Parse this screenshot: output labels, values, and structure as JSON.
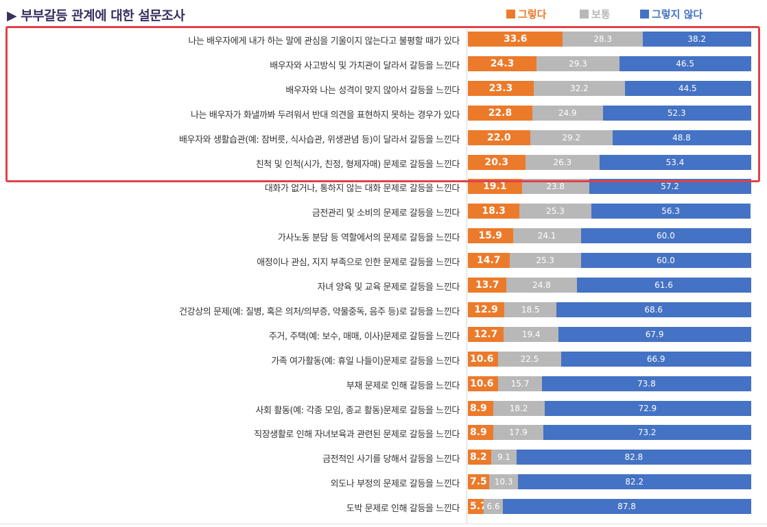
{
  "title": "부부갈등 관계에 대한 설문조사",
  "title_marker": "▶",
  "legend": [
    {
      "label": "그렇다",
      "color": "#ec7a2b"
    },
    {
      "label": "보통",
      "color": "#b8b8b8"
    },
    {
      "label": "그렇지 않다",
      "color": "#4472c4"
    }
  ],
  "highlighted_rows": 6,
  "chart_data": {
    "type": "bar",
    "orientation": "horizontal",
    "stacked": true,
    "percent_total": 100,
    "title": "부부갈등 관계에 대한 설문조사",
    "categories": [
      "나는 배우자에게 내가 하는 말에 관심을 기울이지 않는다고 불평할 때가 있다",
      "배우자와 사고방식 및 가치관이 달라서 갈등을 느낀다",
      "배우자와 나는 성격이 맞지 않아서 갈등을 느낀다",
      "나는 배우자가 화낼까봐 두려워서 반대 의견을 표현하지 못하는 경우가 있다",
      "배우자와 생활습관(예: 잠버릇, 식사습관, 위생관념 등)이 달라서 갈등을 느낀다",
      "친척 및 인척(시가, 친정, 형제자매) 문제로 갈등을 느낀다",
      "대화가 없거나, 통하지 않는 대화 문제로 갈등을 느낀다",
      "금전관리 및 소비의 문제로 갈등을 느낀다",
      "가사노동 분담 등 역할에서의 문제로 갈등을 느낀다",
      "애정이나 관심, 지지 부족으로 인한 문제로 갈등을 느낀다",
      "자녀 양육 및 교육 문제로 갈등을 느낀다",
      "건강상의 문제(예: 질병, 혹은 의처/의부증, 약물중독, 음주 등)로 갈등을 느낀다",
      "주거, 주택(예: 보수, 매매, 이사)문제로 갈등을 느낀다",
      "가족 여가활동(예: 휴일 나들이)문제로 갈등을 느낀다",
      "부채 문제로 인해 갈등을 느낀다",
      "사회 활동(예: 각종 모임, 종교 활동)문제로 갈등을 느낀다",
      "직장생활로 인해 자녀보육과 관련된 문제로 갈등을 느낀다",
      "금전적인 사기를 당해서 갈등을 느낀다",
      "외도나 부정의 문제로 갈등을 느낀다",
      "도박 문제로 인해 갈등을 느낀다"
    ],
    "series": [
      {
        "name": "그렇다",
        "color": "#ec7a2b",
        "values": [
          33.6,
          24.3,
          23.3,
          22.8,
          22.0,
          20.3,
          19.1,
          18.3,
          15.9,
          14.7,
          13.7,
          12.9,
          12.7,
          10.6,
          10.6,
          8.9,
          8.9,
          8.2,
          7.5,
          5.7
        ],
        "labels": [
          "33.6",
          "24.3",
          "23.3",
          "22.8",
          "22.0",
          "20.3",
          "19.1",
          "18.3",
          "15.9",
          "14.7",
          "13.7",
          "12.9",
          "12.7",
          "10.6",
          "10.6",
          "8.9",
          "8.9",
          "8.2",
          "7.5",
          "5.7"
        ]
      },
      {
        "name": "보통",
        "color": "#b8b8b8",
        "values": [
          28.3,
          29.3,
          32.2,
          24.9,
          29.2,
          26.3,
          23.8,
          25.3,
          24.1,
          25.3,
          24.8,
          18.5,
          19.4,
          22.5,
          15.7,
          18.2,
          17.9,
          9.1,
          10.3,
          6.6
        ],
        "labels": [
          "28.3",
          "29.3",
          "32.2",
          "24.9",
          "29.2",
          "26.3",
          "23.8",
          "25.3",
          "24.1",
          "25.3",
          "24.8",
          "18.5",
          "19.4",
          "22.5",
          "15.7",
          "18.2",
          "17.9",
          "9.1",
          "10.3",
          "6.6"
        ]
      },
      {
        "name": "그렇지 않다",
        "color": "#4472c4",
        "values": [
          38.2,
          46.5,
          44.5,
          52.3,
          48.8,
          53.4,
          57.2,
          56.3,
          60.0,
          60.0,
          61.6,
          68.6,
          67.9,
          66.9,
          73.8,
          72.9,
          73.2,
          82.8,
          82.2,
          87.8
        ],
        "labels": [
          "38.2",
          "46.5",
          "44.5",
          "52.3",
          "48.8",
          "53.4",
          "57.2",
          "56.3",
          "60.0",
          "60.0",
          "61.6",
          "68.6",
          "67.9",
          "66.9",
          "73.8",
          "72.9",
          "73.2",
          "82.8",
          "82.2",
          "87.8"
        ]
      }
    ],
    "grid": false,
    "legend_position": "top-right"
  }
}
